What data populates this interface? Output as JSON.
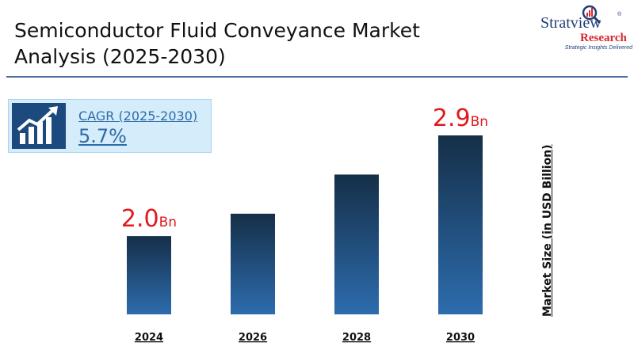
{
  "header": {
    "title": "Semiconductor Fluid Conveyance Market Analysis (2025-2030)"
  },
  "logo": {
    "brand_word1": "Stratview",
    "brand_word2": "Research",
    "registered": "®",
    "tagline": "Strategic Insights Delivered",
    "icon": "magnifier-chart-icon",
    "colors": {
      "primary": "#1f3f77",
      "accent": "#d9262b"
    }
  },
  "cagr": {
    "label": "CAGR (2025-2030)",
    "value": "5.7%",
    "icon": "growth-chart-icon"
  },
  "chart_data": {
    "type": "bar",
    "categories": [
      "2024",
      "2026",
      "2028",
      "2030"
    ],
    "values": [
      2.0,
      2.2,
      2.55,
      2.9
    ],
    "data_labels": [
      {
        "category": "2024",
        "value": "2.0",
        "unit": "Bn"
      },
      null,
      null,
      {
        "category": "2030",
        "value": "2.9",
        "unit": "Bn"
      }
    ],
    "ylabel": "Market Size (in USD Billion)",
    "ylim": [
      1.3,
      2.9
    ],
    "grid": false,
    "colors": {
      "bar_top": "#152f48",
      "bar_bottom": "#2d6cae",
      "label": "#e0191f"
    }
  }
}
